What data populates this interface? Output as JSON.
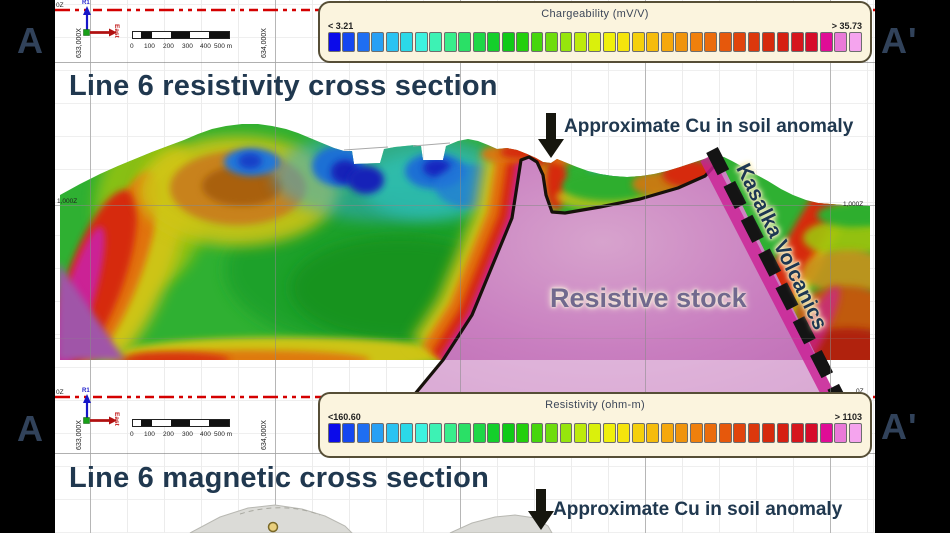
{
  "markers": {
    "left": "A",
    "right": "A'"
  },
  "sections": [
    {
      "id": "resistivity",
      "title": "Line 6 resistivity cross section",
      "legend": {
        "title": "Chargeability (mV/V)",
        "min": "< 3.21",
        "max": "> 35.73"
      },
      "annotations": {
        "cu": "Approximate Cu in soil anomaly",
        "stock": "Resistive stock",
        "volcanics": "Kasalka Volcanics"
      }
    },
    {
      "id": "magnetic",
      "title": "Line 6 magnetic cross section",
      "legend": {
        "title": "Resistivity (ohm-m)",
        "min": "<160.60",
        "max": "> 1103"
      },
      "annotations": {
        "cu": "Approximate Cu in soil anomaly"
      }
    }
  ],
  "axis": {
    "z_label": "0Z",
    "elev_label": "1,000Z",
    "r1": "R1",
    "east": "East",
    "x_left": "633,000X",
    "x_right": "634,000X",
    "scalebar": [
      "0",
      "100",
      "200",
      "300",
      "400",
      "500 m"
    ]
  },
  "scale_colors": [
    "#0b0bea",
    "#1547f0",
    "#1e6ef2",
    "#28a0f5",
    "#2bc3f2",
    "#2bd9e8",
    "#3df2e0",
    "#3df2b4",
    "#38ee8c",
    "#2ae066",
    "#1ed747",
    "#14cf2b",
    "#0fca16",
    "#23cf0c",
    "#46d60c",
    "#6edd0c",
    "#96e60c",
    "#bdeb0c",
    "#daf00c",
    "#f0f00c",
    "#f5e40c",
    "#f5d00c",
    "#f5bc0c",
    "#f5a80c",
    "#f0940c",
    "#f0800c",
    "#eb6c0c",
    "#e6580c",
    "#e1440c",
    "#dc380c",
    "#d62a0c",
    "#d62012",
    "#d6161c",
    "#d60c2a",
    "#e00c96",
    "#ea7ad8",
    "#f5a4ee"
  ],
  "key_colors": {
    "accent_text": "#20384f",
    "legend_bg": "#fbf4de",
    "stock_pink": "#c97fc0",
    "datum_red": "#d40000"
  }
}
